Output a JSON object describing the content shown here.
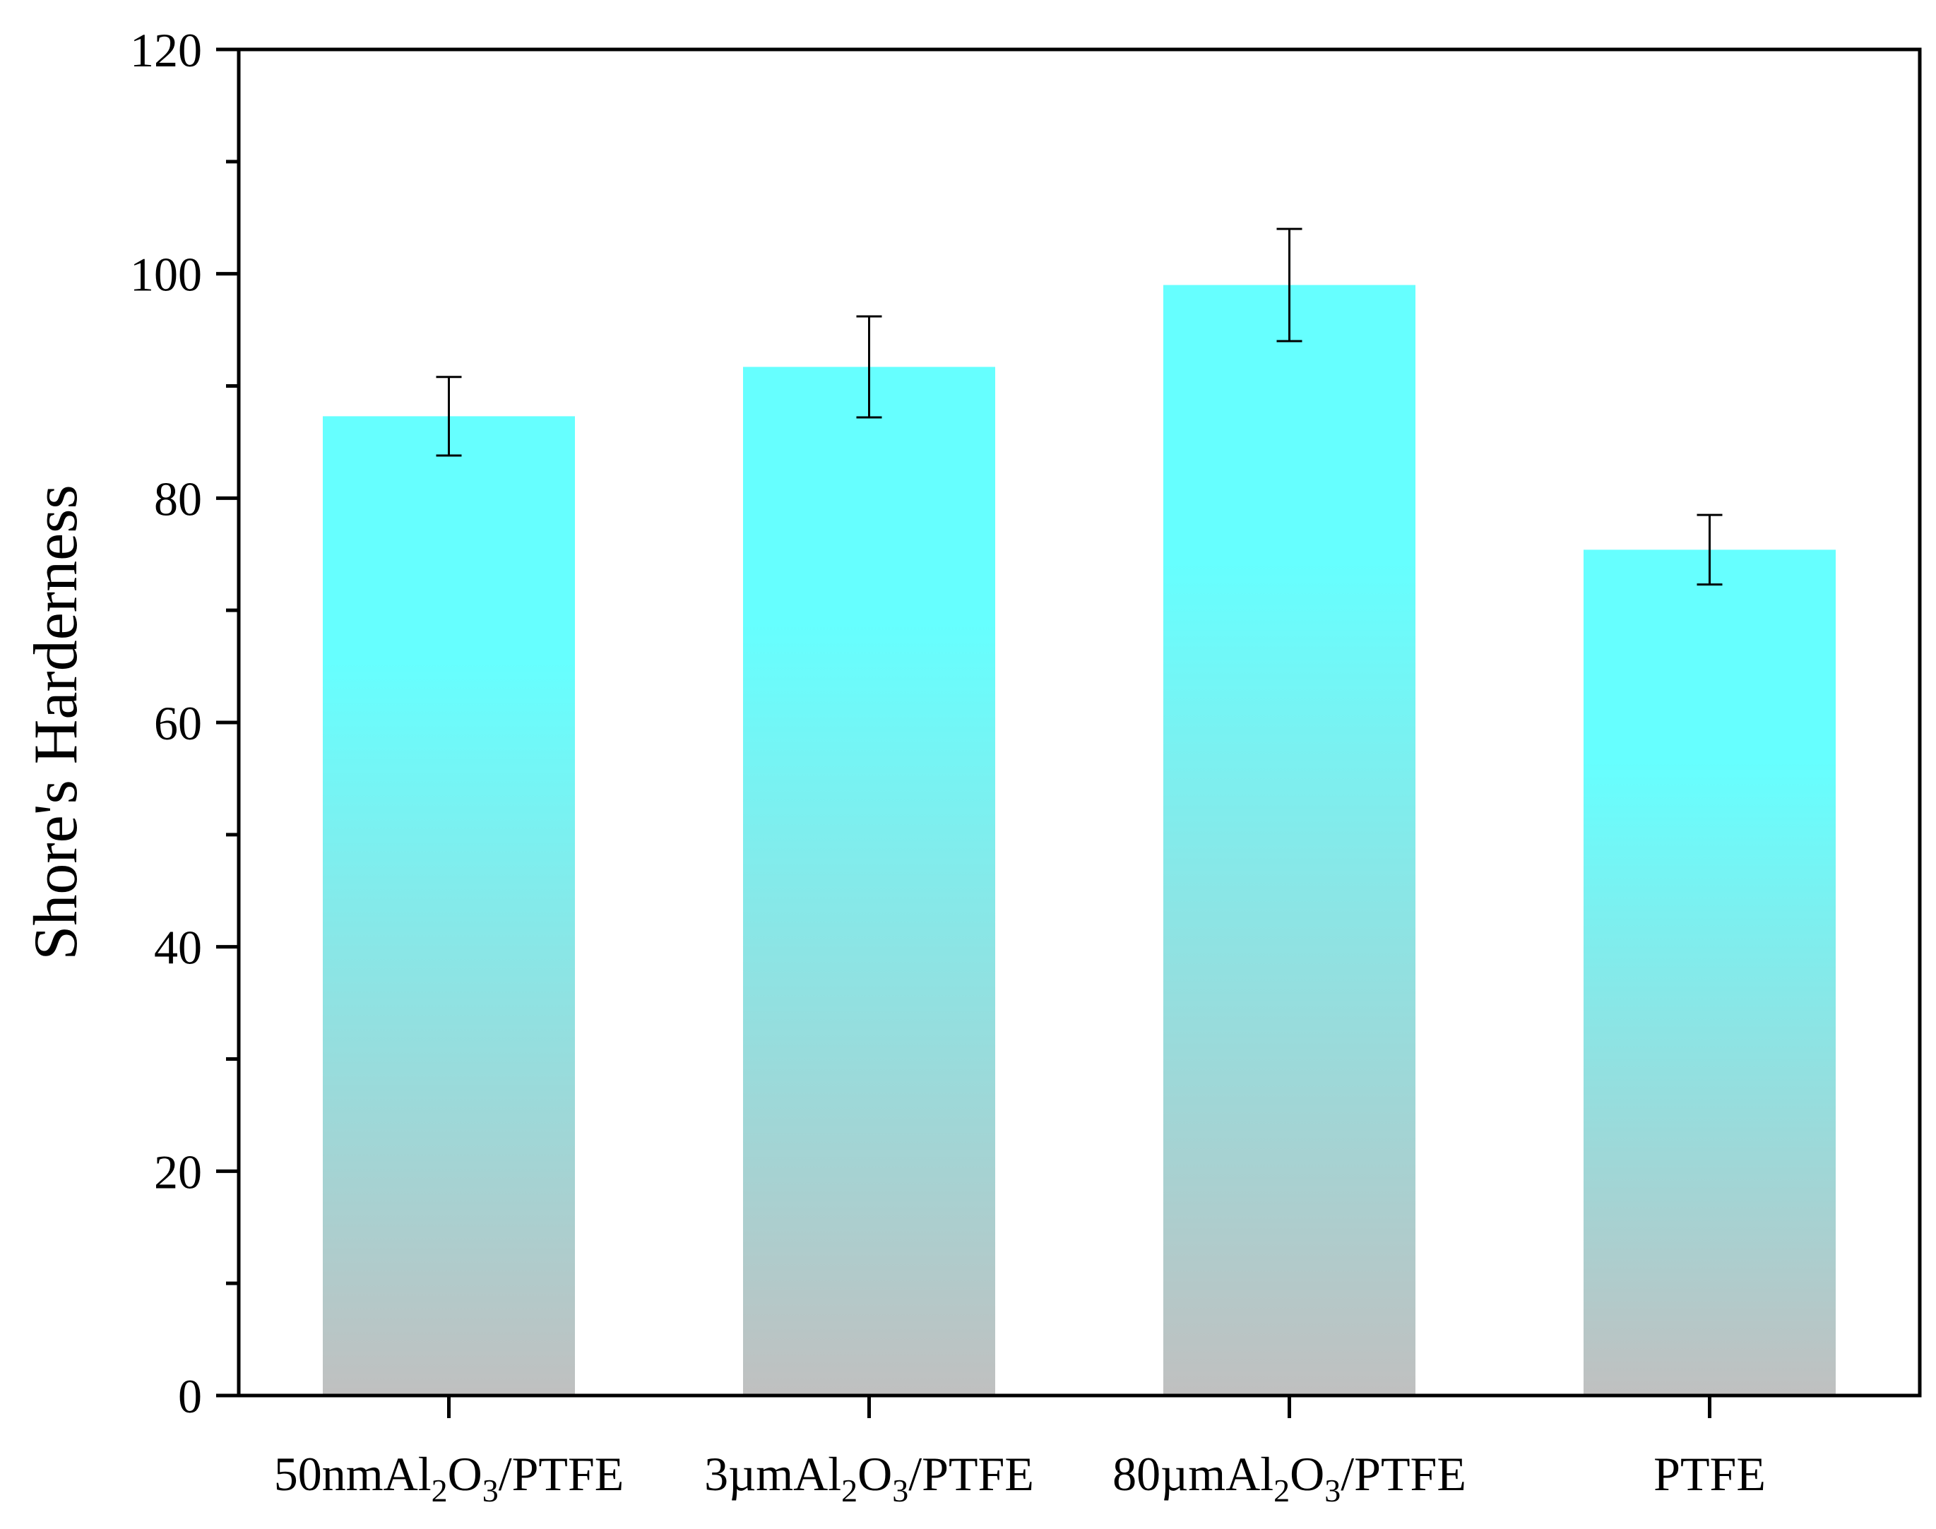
{
  "chart_data": {
    "type": "bar",
    "title": "",
    "xlabel": "",
    "ylabel": "Shore's Harderness",
    "ylim": [
      0,
      120
    ],
    "yticks": [
      0,
      20,
      40,
      60,
      80,
      100,
      120
    ],
    "ytick_labels": [
      "0",
      "20",
      "40",
      "60",
      "80",
      "100",
      "120"
    ],
    "categories": [
      {
        "prefix": "50nmAl",
        "sub1": "2",
        "mid": "O",
        "sub2": "3",
        "suffix": "/PTFE"
      },
      {
        "prefix": "3µmAl",
        "sub1": "2",
        "mid": "O",
        "sub2": "3",
        "suffix": "/PTFE"
      },
      {
        "prefix": "80µmAl",
        "sub1": "2",
        "mid": "O",
        "sub2": "3",
        "suffix": "/PTFE"
      },
      {
        "prefix": "PTFE",
        "sub1": "",
        "mid": "",
        "sub2": "",
        "suffix": ""
      }
    ],
    "values": [
      87.3,
      91.7,
      99.0,
      75.4
    ],
    "error_low": [
      83.8,
      87.2,
      94.0,
      72.3
    ],
    "error_high": [
      90.8,
      96.2,
      104.0,
      78.5
    ],
    "grid": false,
    "legend": "none",
    "colors": {
      "bar_top": "#66ffff",
      "bar_bottom": "#c0c0c0",
      "axis": "#000000",
      "background": "#ffffff"
    }
  }
}
